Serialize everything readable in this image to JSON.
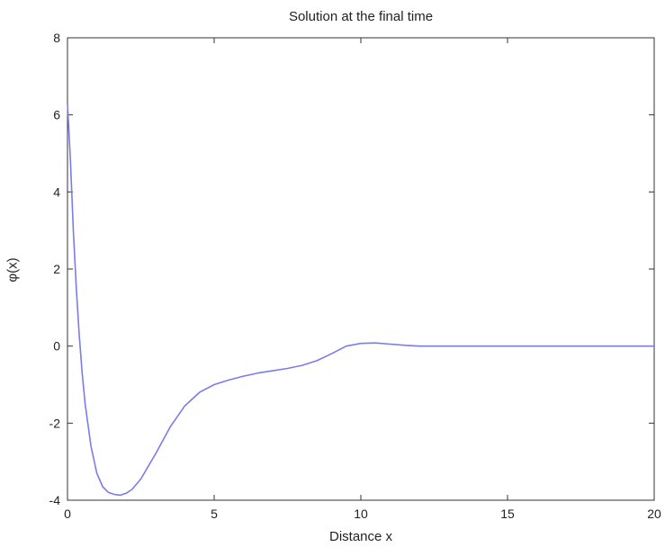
{
  "chart_data": {
    "type": "line",
    "title": "Solution at the final time",
    "xlabel": "Distance x",
    "ylabel": "φ(x)",
    "xlim": [
      0,
      20
    ],
    "ylim": [
      -4,
      8
    ],
    "xticks": [
      0,
      5,
      10,
      15,
      20
    ],
    "yticks": [
      -4,
      -2,
      0,
      2,
      4,
      6,
      8
    ],
    "grid": false,
    "line_color": "#7b7bf0",
    "series": [
      {
        "x": [
          0,
          0.1,
          0.2,
          0.3,
          0.4,
          0.5,
          0.6,
          0.8,
          1.0,
          1.2,
          1.4,
          1.6,
          1.8,
          2.0,
          2.2,
          2.5,
          3.0,
          3.5,
          4.0,
          4.5,
          5.0,
          5.5,
          6.0,
          6.5,
          7.0,
          7.5,
          8.0,
          8.5,
          9.0,
          9.5,
          10.0,
          10.5,
          11.0,
          11.5,
          12.0,
          13.0,
          14.0,
          15.0,
          16.0,
          17.0,
          18.0,
          19.0,
          20.0
        ],
        "y": [
          6.3,
          4.8,
          3.0,
          1.5,
          0.3,
          -0.7,
          -1.5,
          -2.6,
          -3.3,
          -3.65,
          -3.8,
          -3.85,
          -3.87,
          -3.82,
          -3.72,
          -3.45,
          -2.8,
          -2.1,
          -1.55,
          -1.2,
          -1.0,
          -0.88,
          -0.78,
          -0.7,
          -0.64,
          -0.58,
          -0.5,
          -0.38,
          -0.2,
          0.0,
          0.07,
          0.08,
          0.05,
          0.02,
          0.0,
          0.0,
          0.0,
          0.0,
          0.0,
          0.0,
          0.0,
          0.0,
          0.0
        ]
      }
    ]
  }
}
